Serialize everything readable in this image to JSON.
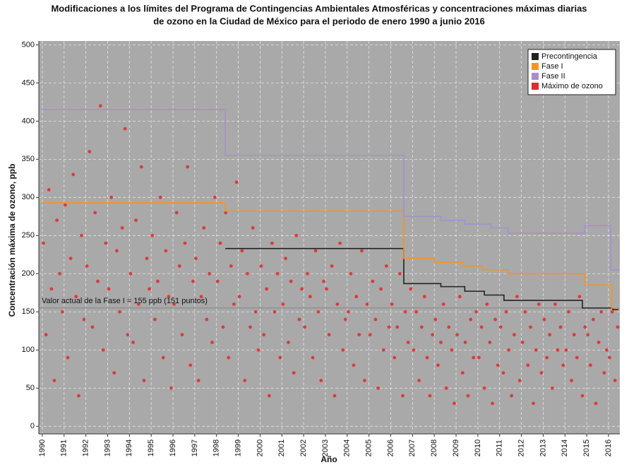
{
  "chart_data": {
    "type": "scatter",
    "title": [
      "Modificaciones a los límites del Programa de Contingencias Ambientales Atmosféricas y concentraciones máximas diarias",
      "de ozono en la Ciudad de México para el periodo de enero 1990 a junio 2016"
    ],
    "x_label": "Año",
    "y_label": "Concentración máxima de ozono, ppb",
    "xlim": [
      1989.84,
      2016.52
    ],
    "ylim": [
      -10,
      505
    ],
    "xticks": [
      1990,
      1991,
      1992,
      1993,
      1994,
      1995,
      1996,
      1997,
      1998,
      1999,
      2000,
      2001,
      2002,
      2003,
      2004,
      2005,
      2006,
      2007,
      2008,
      2009,
      2010,
      2011,
      2012,
      2013,
      2014,
      2015,
      2016
    ],
    "yticks": [
      0,
      50,
      100,
      150,
      200,
      250,
      300,
      350,
      400,
      450,
      500
    ],
    "grid": true,
    "legend": "upper right",
    "reference_line": {
      "value": 155,
      "label": "Valor actual de la Fase I = 155 ppb (151 puntos)",
      "color": "#8a8a8a"
    },
    "series": [
      {
        "name": "Precontingencia",
        "type": "step",
        "color": "#222222",
        "x": [
          1998.4,
          2006.6,
          2008.3,
          2009.4,
          2010.3,
          2011.2,
          2014.8,
          2016.2,
          2016.45
        ],
        "values": [
          233,
          187,
          183,
          177,
          172,
          165,
          155,
          153,
          153
        ]
      },
      {
        "name": "Fase I",
        "type": "step",
        "color": "#f7941d",
        "x": [
          1990,
          1998.4,
          2006.6,
          2008.0,
          2009.3,
          2010.2,
          2011.4,
          2014.9,
          2016.15,
          2016.45
        ],
        "values": [
          293,
          282,
          220,
          215,
          210,
          205,
          200,
          185,
          155,
          155
        ]
      },
      {
        "name": "Fase II",
        "type": "step",
        "color": "#a58fd0",
        "x": [
          1990,
          1998.4,
          2006.6,
          2008.3,
          2009.4,
          2010.6,
          2011.4,
          2014.9,
          2016.1,
          2016.45
        ],
        "values": [
          415,
          355,
          275,
          270,
          265,
          260,
          253,
          263,
          205,
          205
        ]
      },
      {
        "name": "Máximo de ozono",
        "type": "scatter",
        "color": "#e8262a",
        "x": [
          1990.05,
          1990.17,
          1990.3,
          1990.42,
          1990.55,
          1990.67,
          1990.8,
          1990.92,
          1991.05,
          1991.17,
          1991.3,
          1991.42,
          1991.55,
          1991.67,
          1991.8,
          1991.92,
          1992.05,
          1992.17,
          1992.3,
          1992.42,
          1992.55,
          1992.67,
          1992.8,
          1992.92,
          1993.05,
          1993.17,
          1993.3,
          1993.42,
          1993.55,
          1993.67,
          1993.8,
          1993.92,
          1994.05,
          1994.17,
          1994.3,
          1994.42,
          1994.55,
          1994.67,
          1994.8,
          1994.92,
          1995.05,
          1995.17,
          1995.3,
          1995.42,
          1995.55,
          1995.67,
          1995.8,
          1995.92,
          1996.05,
          1996.17,
          1996.3,
          1996.42,
          1996.55,
          1996.67,
          1996.8,
          1996.92,
          1997.05,
          1997.17,
          1997.3,
          1997.42,
          1997.55,
          1997.67,
          1997.8,
          1997.92,
          1998.05,
          1998.17,
          1998.3,
          1998.42,
          1998.55,
          1998.67,
          1998.8,
          1998.92,
          1999.05,
          1999.17,
          1999.3,
          1999.42,
          1999.55,
          1999.67,
          1999.8,
          1999.92,
          2000.05,
          2000.17,
          2000.3,
          2000.42,
          2000.55,
          2000.67,
          2000.8,
          2000.92,
          2001.05,
          2001.17,
          2001.3,
          2001.42,
          2001.55,
          2001.67,
          2001.8,
          2001.92,
          2002.05,
          2002.17,
          2002.3,
          2002.42,
          2002.55,
          2002.67,
          2002.8,
          2002.92,
          2003.05,
          2003.17,
          2003.3,
          2003.42,
          2003.55,
          2003.67,
          2003.8,
          2003.92,
          2004.05,
          2004.17,
          2004.3,
          2004.42,
          2004.55,
          2004.67,
          2004.8,
          2004.92,
          2005.05,
          2005.17,
          2005.3,
          2005.42,
          2005.55,
          2005.67,
          2005.8,
          2005.92,
          2006.05,
          2006.17,
          2006.3,
          2006.42,
          2006.55,
          2006.67,
          2006.8,
          2006.92,
          2007.05,
          2007.17,
          2007.3,
          2007.42,
          2007.55,
          2007.67,
          2007.8,
          2007.92,
          2008.05,
          2008.17,
          2008.3,
          2008.42,
          2008.55,
          2008.67,
          2008.8,
          2008.92,
          2009.05,
          2009.17,
          2009.3,
          2009.42,
          2009.55,
          2009.67,
          2009.8,
          2009.92,
          2010.05,
          2010.17,
          2010.3,
          2010.42,
          2010.55,
          2010.67,
          2010.8,
          2010.92,
          2011.05,
          2011.17,
          2011.3,
          2011.42,
          2011.55,
          2011.67,
          2011.8,
          2011.92,
          2012.05,
          2012.17,
          2012.3,
          2012.42,
          2012.55,
          2012.67,
          2012.8,
          2012.92,
          2013.05,
          2013.17,
          2013.3,
          2013.42,
          2013.55,
          2013.67,
          2013.8,
          2013.92,
          2014.05,
          2014.17,
          2014.3,
          2014.42,
          2014.55,
          2014.67,
          2014.8,
          2014.92,
          2015.05,
          2015.17,
          2015.3,
          2015.42,
          2015.55,
          2015.67,
          2015.8,
          2015.92,
          2016.05,
          2016.17,
          2016.3,
          2016.42
        ],
        "values": [
          240,
          120,
          310,
          180,
          60,
          270,
          200,
          150,
          290,
          90,
          220,
          330,
          170,
          40,
          250,
          140,
          210,
          360,
          130,
          280,
          190,
          420,
          100,
          240,
          180,
          300,
          70,
          230,
          150,
          260,
          390,
          120,
          200,
          110,
          270,
          160,
          340,
          60,
          220,
          180,
          250,
          140,
          190,
          300,
          90,
          230,
          170,
          50,
          160,
          280,
          210,
          120,
          240,
          340,
          80,
          190,
          220,
          60,
          170,
          260,
          140,
          200,
          110,
          300,
          190,
          240,
          130,
          280,
          90,
          210,
          160,
          320,
          170,
          230,
          60,
          200,
          130,
          260,
          150,
          100,
          210,
          120,
          180,
          40,
          240,
          150,
          200,
          90,
          160,
          220,
          110,
          190,
          70,
          250,
          140,
          180,
          130,
          200,
          170,
          90,
          230,
          150,
          60,
          190,
          180,
          120,
          210,
          40,
          160,
          240,
          100,
          140,
          150,
          200,
          80,
          170,
          120,
          230,
          60,
          160,
          120,
          190,
          140,
          50,
          180,
          100,
          210,
          130,
          160,
          90,
          130,
          200,
          40,
          150,
          110,
          180,
          100,
          150,
          60,
          130,
          170,
          90,
          40,
          120,
          140,
          80,
          110,
          160,
          50,
          130,
          100,
          30,
          120,
          170,
          70,
          110,
          40,
          140,
          90,
          150,
          90,
          130,
          50,
          160,
          110,
          30,
          140,
          80,
          130,
          70,
          150,
          100,
          40,
          120,
          170,
          60,
          110,
          150,
          80,
          130,
          30,
          100,
          160,
          70,
          140,
          90,
          120,
          50,
          160,
          100,
          130,
          80,
          100,
          150,
          60,
          120,
          90,
          170,
          40,
          130,
          120,
          80,
          140,
          30,
          110,
          150,
          70,
          100,
          90,
          150,
          60,
          130
        ]
      }
    ]
  }
}
